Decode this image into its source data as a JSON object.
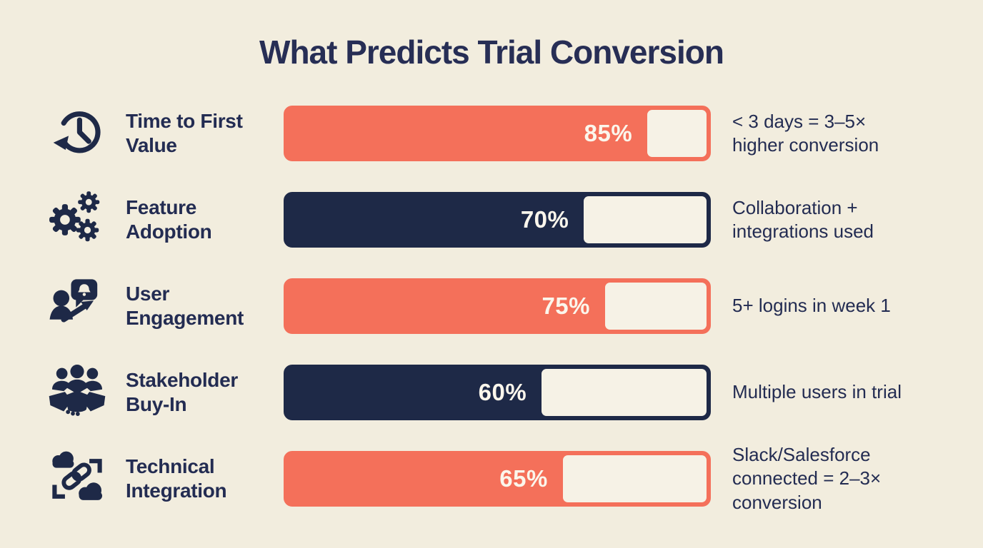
{
  "title": "What Predicts Trial Conversion",
  "colors": {
    "background": "#f2edde",
    "navy": "#1e2947",
    "coral": "#f4705a",
    "text": "#232c52",
    "bar_value_text": "#fbf6ec",
    "track_empty": "#f6f2e6"
  },
  "chart_data": {
    "type": "bar",
    "orientation": "horizontal",
    "title": "What Predicts Trial Conversion",
    "categories": [
      "Time to First Value",
      "Feature Adoption",
      "User Engagement",
      "Stakeholder Buy-In",
      "Technical Integration"
    ],
    "values": [
      85,
      70,
      75,
      60,
      65
    ],
    "value_labels": [
      "85%",
      "70%",
      "75%",
      "60%",
      "65%"
    ],
    "bar_colors": [
      "#f4705a",
      "#1e2947",
      "#f4705a",
      "#1e2947",
      "#f4705a"
    ],
    "annotations": [
      "< 3 days = 3–5× higher conversion",
      "Collaboration + integrations used",
      "5+ logins in week 1",
      "Multiple users in trial",
      "Slack/Salesforce connected = 2–3× conversion"
    ],
    "xlim": [
      0,
      100
    ],
    "grid": false,
    "legend": false
  },
  "rows": [
    {
      "icon": "history-clock-icon",
      "label": "Time to First\nValue",
      "value": 85,
      "value_label": "85%",
      "color": "#f4705a",
      "note": "< 3 days = 3–5×\nhigher conversion"
    },
    {
      "icon": "gears-icon",
      "label": "Feature\nAdoption",
      "value": 70,
      "value_label": "70%",
      "color": "#1e2947",
      "note": "Collaboration +\nintegrations used"
    },
    {
      "icon": "user-engagement-icon",
      "label": "User\nEngagement",
      "value": 75,
      "value_label": "75%",
      "color": "#f4705a",
      "note": "5+ logins in week 1"
    },
    {
      "icon": "stakeholder-handshake-icon",
      "label": "Stakeholder\nBuy-In",
      "value": 60,
      "value_label": "60%",
      "color": "#1e2947",
      "note": "Multiple users in trial"
    },
    {
      "icon": "cloud-link-icon",
      "label": "Technical\nIntegration",
      "value": 65,
      "value_label": "65%",
      "color": "#f4705a",
      "note": "Slack/Salesforce\nconnected = 2–3×\nconversion"
    }
  ]
}
